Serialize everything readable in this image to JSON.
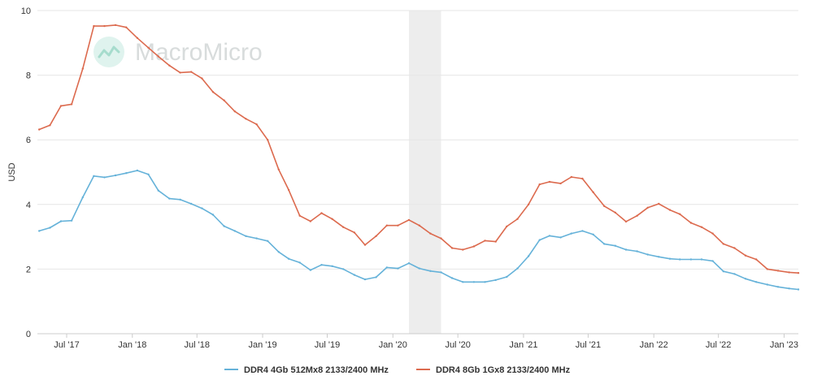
{
  "watermark": {
    "text": "MacroMicro",
    "icon": "macromicro-logo-icon"
  },
  "chart_data": {
    "type": "line",
    "ylabel": "USD",
    "xlabel": "",
    "ylim": [
      0,
      10
    ],
    "yticks": [
      0,
      2,
      4,
      6,
      8,
      10
    ],
    "xlim": [
      "2017-04-10",
      "2023-02-10"
    ],
    "xticks": [
      {
        "date": "2017-07-01",
        "label": "Jul '17"
      },
      {
        "date": "2018-01-01",
        "label": "Jan '18"
      },
      {
        "date": "2018-07-01",
        "label": "Jul '18"
      },
      {
        "date": "2019-01-01",
        "label": "Jan '19"
      },
      {
        "date": "2019-07-01",
        "label": "Jul '19"
      },
      {
        "date": "2020-01-01",
        "label": "Jan '20"
      },
      {
        "date": "2020-07-01",
        "label": "Jul '20"
      },
      {
        "date": "2021-01-01",
        "label": "Jan '21"
      },
      {
        "date": "2021-07-01",
        "label": "Jul '21"
      },
      {
        "date": "2022-01-01",
        "label": "Jan '22"
      },
      {
        "date": "2022-07-01",
        "label": "Jul '22"
      },
      {
        "date": "2023-01-01",
        "label": "Jan '23"
      }
    ],
    "shaded_band": {
      "from": "2020-02-15",
      "to": "2020-05-15",
      "color": "#ededed"
    },
    "grid": true,
    "legend_position": "bottom-center",
    "x": [
      "2017-04-15",
      "2017-05-15",
      "2017-06-15",
      "2017-07-15",
      "2017-08-15",
      "2017-09-15",
      "2017-10-15",
      "2017-11-15",
      "2017-12-15",
      "2018-01-15",
      "2018-02-15",
      "2018-03-15",
      "2018-04-15",
      "2018-05-15",
      "2018-06-15",
      "2018-07-15",
      "2018-08-15",
      "2018-09-15",
      "2018-10-15",
      "2018-11-15",
      "2018-12-15",
      "2019-01-15",
      "2019-02-15",
      "2019-03-15",
      "2019-04-15",
      "2019-05-15",
      "2019-06-15",
      "2019-07-15",
      "2019-08-15",
      "2019-09-15",
      "2019-10-15",
      "2019-11-15",
      "2019-12-15",
      "2020-01-15",
      "2020-02-15",
      "2020-03-15",
      "2020-04-15",
      "2020-05-15",
      "2020-06-15",
      "2020-07-15",
      "2020-08-15",
      "2020-09-15",
      "2020-10-15",
      "2020-11-15",
      "2020-12-15",
      "2021-01-15",
      "2021-02-15",
      "2021-03-15",
      "2021-04-15",
      "2021-05-15",
      "2021-06-15",
      "2021-07-15",
      "2021-08-15",
      "2021-09-15",
      "2021-10-15",
      "2021-11-15",
      "2021-12-15",
      "2022-01-15",
      "2022-02-15",
      "2022-03-15",
      "2022-04-15",
      "2022-05-15",
      "2022-06-15",
      "2022-07-15",
      "2022-08-15",
      "2022-09-15",
      "2022-10-15",
      "2022-11-15",
      "2022-12-15",
      "2023-01-15",
      "2023-02-10"
    ],
    "series": [
      {
        "name": "DDR4 4Gb 512Mx8 2133/2400 MHz",
        "color": "#65b2d9",
        "values": [
          3.18,
          3.28,
          3.48,
          3.5,
          4.22,
          4.88,
          4.84,
          4.9,
          4.97,
          5.05,
          4.93,
          4.43,
          4.18,
          4.15,
          4.02,
          3.88,
          3.68,
          3.33,
          3.18,
          3.02,
          2.95,
          2.87,
          2.53,
          2.32,
          2.2,
          1.97,
          2.13,
          2.09,
          2.0,
          1.82,
          1.68,
          1.75,
          2.05,
          2.02,
          2.18,
          2.02,
          1.94,
          1.9,
          1.72,
          1.6,
          1.6,
          1.6,
          1.66,
          1.76,
          2.02,
          2.4,
          2.9,
          3.03,
          2.98,
          3.1,
          3.18,
          3.07,
          2.78,
          2.72,
          2.6,
          2.55,
          2.45,
          2.38,
          2.32,
          2.3,
          2.3,
          2.3,
          2.25,
          1.93,
          1.85,
          1.7,
          1.6,
          1.52,
          1.45,
          1.4,
          1.37
        ]
      },
      {
        "name": "DDR4 8Gb 1Gx8 2133/2400 MHz",
        "color": "#dc6a4e",
        "values": [
          6.32,
          6.45,
          7.05,
          7.1,
          8.2,
          9.52,
          9.52,
          9.55,
          9.48,
          9.15,
          8.85,
          8.58,
          8.3,
          8.08,
          8.1,
          7.9,
          7.48,
          7.22,
          6.88,
          6.65,
          6.48,
          6.0,
          5.08,
          4.45,
          3.65,
          3.48,
          3.73,
          3.55,
          3.3,
          3.13,
          2.75,
          3.02,
          3.35,
          3.35,
          3.52,
          3.35,
          3.1,
          2.95,
          2.65,
          2.6,
          2.7,
          2.88,
          2.85,
          3.32,
          3.55,
          4.0,
          4.62,
          4.7,
          4.65,
          4.85,
          4.8,
          4.38,
          3.95,
          3.75,
          3.47,
          3.65,
          3.9,
          4.02,
          3.83,
          3.7,
          3.43,
          3.3,
          3.1,
          2.78,
          2.65,
          2.42,
          2.3,
          2.0,
          1.95,
          1.9,
          1.88
        ]
      }
    ]
  }
}
